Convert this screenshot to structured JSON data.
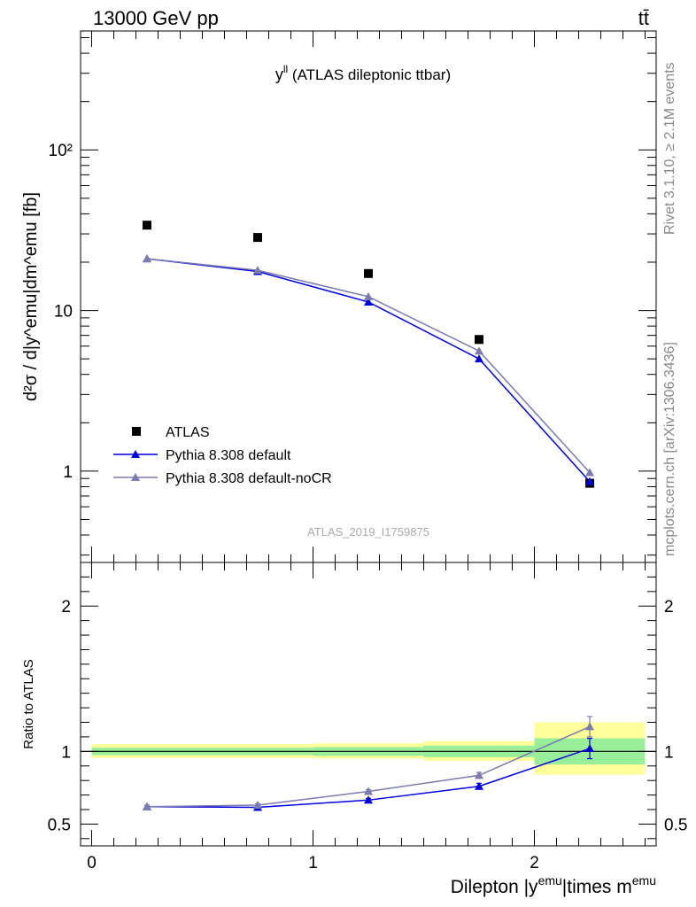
{
  "header": {
    "process": "13000 GeV pp",
    "channel": "tt̄"
  },
  "side_text": {
    "rivet": "Rivet 3.1.10, ≥ 2.1M events",
    "site": "mcplots.cern.ch [arXiv:1306.3436]"
  },
  "chart_data": [
    {
      "panel": "main",
      "type": "scatter",
      "title_main": "y",
      "title_sup": "ll",
      "title_rest": " (ATLAS dileptonic ttbar)",
      "ylabel": "d²σ / d|y^emu|dm^emu [fb]",
      "yscale": "log",
      "ylim": [
        0.27,
        550
      ],
      "xlim": [
        -0.05,
        2.55
      ],
      "ytick_labels": [
        "1",
        "10",
        "10²"
      ],
      "watermark": "ATLAS_2019_I1759875",
      "legend_position": "bottom-left",
      "x": [
        0.25,
        0.75,
        1.25,
        1.75,
        2.25
      ],
      "series": [
        {
          "name": "ATLAS",
          "values": [
            34.0,
            28.5,
            17.0,
            6.6,
            0.84
          ],
          "color": "#000000",
          "marker": "square"
        },
        {
          "name": "Pythia 8.308 default",
          "values": [
            21.0,
            17.5,
            11.3,
            5.0,
            0.86
          ],
          "color": "#0000dd",
          "marker": "triangle"
        },
        {
          "name": "Pythia 8.308 default-noCR",
          "values": [
            21.0,
            17.8,
            12.2,
            5.6,
            0.98
          ],
          "color": "#7b7bb0",
          "marker": "triangle"
        }
      ]
    },
    {
      "panel": "ratio",
      "type": "line",
      "ylabel": "Ratio to ATLAS",
      "xlabel_main": "Dilepton |y",
      "xlabel_sup1": "emu",
      "xlabel_mid": "|times m",
      "xlabel_sup2": "emu",
      "ylim": [
        0.35,
        2.3
      ],
      "xlim": [
        -0.05,
        2.55
      ],
      "ytick_labels": [
        "0.5",
        "1",
        "2"
      ],
      "xtick_labels": [
        "0",
        "1",
        "2"
      ],
      "x": [
        0.25,
        0.75,
        1.25,
        1.75,
        2.25
      ],
      "bands": [
        {
          "x0": 0.0,
          "x1": 0.5,
          "inner": [
            0.975,
            1.025
          ],
          "outer": [
            0.955,
            1.05
          ]
        },
        {
          "x0": 0.5,
          "x1": 1.0,
          "inner": [
            0.975,
            1.025
          ],
          "outer": [
            0.955,
            1.05
          ]
        },
        {
          "x0": 1.0,
          "x1": 1.5,
          "inner": [
            0.97,
            1.03
          ],
          "outer": [
            0.95,
            1.055
          ]
        },
        {
          "x0": 1.5,
          "x1": 2.0,
          "inner": [
            0.96,
            1.04
          ],
          "outer": [
            0.935,
            1.07
          ]
        },
        {
          "x0": 2.0,
          "x1": 2.5,
          "inner": [
            0.91,
            1.09
          ],
          "outer": [
            0.84,
            1.2
          ]
        }
      ],
      "band_colors": {
        "inner": "#99ee99",
        "outer": "#ffff99"
      },
      "series": [
        {
          "name": "Pythia 8.308 default",
          "values": [
            0.62,
            0.615,
            0.665,
            0.76,
            1.02
          ],
          "errors": [
            0.01,
            0.01,
            0.012,
            0.02,
            0.07
          ],
          "color": "#0000dd"
        },
        {
          "name": "Pythia 8.308 default-noCR",
          "values": [
            0.62,
            0.63,
            0.725,
            0.835,
            1.17
          ],
          "errors": [
            0.01,
            0.01,
            0.012,
            0.02,
            0.07
          ],
          "color": "#7b7bb0"
        }
      ]
    }
  ]
}
